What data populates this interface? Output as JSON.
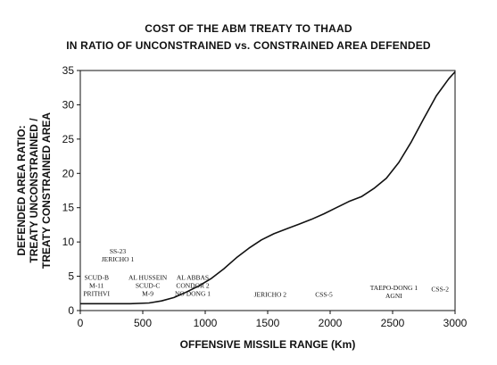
{
  "chart_data": {
    "type": "line",
    "title": "COST OF THE ABM TREATY TO THAAD",
    "subtitle": "IN RATIO OF UNCONSTRAINED vs. CONSTRAINED AREA DEFENDED",
    "xlabel": "OFFENSIVE MISSILE RANGE (Km)",
    "ylabel_lines": [
      "DEFENDED AREA RATIO:",
      "TREATY UNCONSTRAINED /",
      "TREATY CONSTRAINED AREA"
    ],
    "xlim": [
      0,
      3000
    ],
    "ylim": [
      0,
      35
    ],
    "xticks": [
      0,
      500,
      1000,
      1500,
      2000,
      2500,
      3000
    ],
    "yticks": [
      0,
      5,
      10,
      15,
      20,
      25,
      30,
      35
    ],
    "grid": false,
    "series": [
      {
        "x": [
          0,
          200,
          400,
          550,
          650,
          750,
          850,
          950,
          1050,
          1150,
          1250,
          1350,
          1450,
          1550,
          1650,
          1750,
          1850,
          1950,
          2050,
          2150,
          2250,
          2350,
          2450,
          2550,
          2650,
          2750,
          2850,
          2950,
          3000
        ],
        "values": [
          1,
          1,
          1,
          1.1,
          1.4,
          1.9,
          2.7,
          3.6,
          4.7,
          6.1,
          7.7,
          9.1,
          10.3,
          11.2,
          11.9,
          12.6,
          13.3,
          14.1,
          15.0,
          15.9,
          16.6,
          17.8,
          19.3,
          21.6,
          24.6,
          28.0,
          31.3,
          33.8,
          34.8
        ]
      }
    ],
    "annotations": [
      {
        "x": 300,
        "y": 8.3,
        "lines": [
          "SS-23",
          "JERICHO 1"
        ]
      },
      {
        "x": 130,
        "y": 4.5,
        "lines": [
          "SCUD-B",
          "M-11",
          "PRITHVI"
        ]
      },
      {
        "x": 540,
        "y": 4.5,
        "lines": [
          "AL HUSSEIN",
          "SCUD-C",
          "M-9"
        ]
      },
      {
        "x": 900,
        "y": 4.5,
        "lines": [
          "AL ABBAS",
          "CONDOR 2",
          "NO DONG 1"
        ]
      },
      {
        "x": 1520,
        "y": 2.0,
        "lines": [
          "JERICHO 2"
        ]
      },
      {
        "x": 1950,
        "y": 2.0,
        "lines": [
          "CSS-5"
        ]
      },
      {
        "x": 2510,
        "y": 3.0,
        "lines": [
          "TAEPO-DONG 1",
          "AGNI"
        ]
      },
      {
        "x": 2880,
        "y": 2.8,
        "lines": [
          "CSS-2"
        ]
      }
    ]
  }
}
